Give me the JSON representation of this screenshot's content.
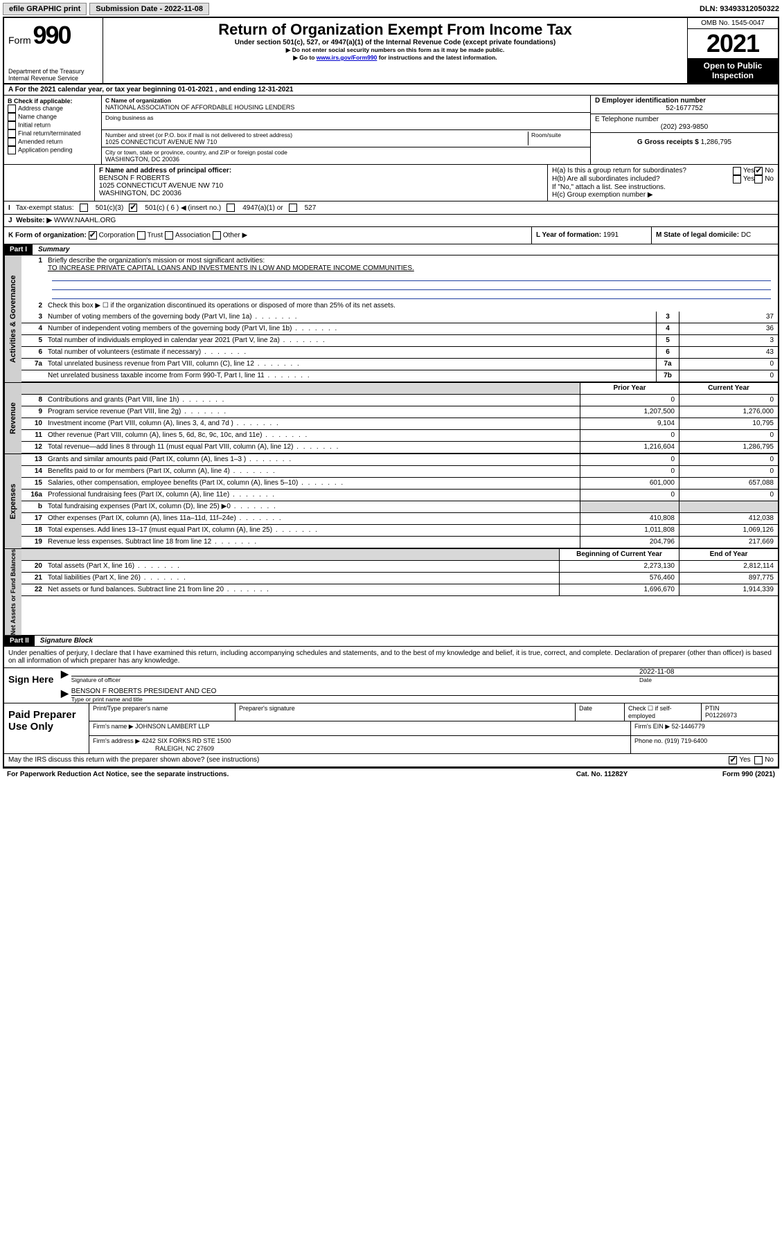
{
  "topbar": {
    "efile": "efile GRAPHIC print",
    "submission_label": "Submission Date - 2022-11-08",
    "dln": "DLN: 93493312050322"
  },
  "header": {
    "form_label": "Form",
    "form_number": "990",
    "dept": "Department of the Treasury",
    "irs": "Internal Revenue Service",
    "title": "Return of Organization Exempt From Income Tax",
    "subtitle": "Under section 501(c), 527, or 4947(a)(1) of the Internal Revenue Code (except private foundations)",
    "note1": "▶ Do not enter social security numbers on this form as it may be made public.",
    "note2_prefix": "▶ Go to ",
    "note2_link": "www.irs.gov/Form990",
    "note2_suffix": " for instructions and the latest information.",
    "omb": "OMB No. 1545-0047",
    "year": "2021",
    "open": "Open to Public Inspection"
  },
  "sectionA": {
    "text": "A For the 2021 calendar year, or tax year beginning 01-01-2021   , and ending 12-31-2021"
  },
  "sectionB": {
    "label": "B Check if applicable:",
    "items": [
      "Address change",
      "Name change",
      "Initial return",
      "Final return/terminated",
      "Amended return",
      "Application pending"
    ]
  },
  "sectionC": {
    "name_label": "C Name of organization",
    "name": "NATIONAL ASSOCIATION OF AFFORDABLE HOUSING LENDERS",
    "dba_label": "Doing business as",
    "street_label": "Number and street (or P.O. box if mail is not delivered to street address)",
    "room_label": "Room/suite",
    "street": "1025 CONNECTICUT AVENUE NW 710",
    "city_label": "City or town, state or province, country, and ZIP or foreign postal code",
    "city": "WASHINGTON, DC  20036"
  },
  "sectionD": {
    "label": "D Employer identification number",
    "value": "52-1677752"
  },
  "sectionE": {
    "label": "E Telephone number",
    "value": "(202) 293-9850"
  },
  "sectionG": {
    "label": "G Gross receipts $",
    "value": "1,286,795"
  },
  "sectionF": {
    "label": "F Name and address of principal officer:",
    "name": "BENSON F ROBERTS",
    "addr1": "1025 CONNECTICUT AVENUE NW 710",
    "addr2": "WASHINGTON, DC  20036"
  },
  "sectionH": {
    "ha": "H(a)  Is this a group return for subordinates?",
    "hb": "H(b)  Are all subordinates included?",
    "hb_note": "If \"No,\" attach a list. See instructions.",
    "hc": "H(c)  Group exemption number ▶",
    "yes": "Yes",
    "no": "No"
  },
  "lineI": {
    "label": "Tax-exempt status:",
    "opt1": "501(c)(3)",
    "opt2": "501(c) ( 6 ) ◀ (insert no.)",
    "opt3": "4947(a)(1) or",
    "opt4": "527"
  },
  "lineJ": {
    "label": "Website: ▶",
    "value": "WWW.NAAHL.ORG"
  },
  "lineK": {
    "label": "K Form of organization:",
    "opts": [
      "Corporation",
      "Trust",
      "Association",
      "Other ▶"
    ],
    "L_label": "L Year of formation: ",
    "L_value": "1991",
    "M_label": "M State of legal domicile: ",
    "M_value": "DC"
  },
  "part1": {
    "hdr": "Part I",
    "title": "Summary",
    "line1_label": "Briefly describe the organization's mission or most significant activities:",
    "line1_text": "TO INCREASE PRIVATE CAPITAL LOANS AND INVESTMENTS IN LOW AND MODERATE INCOME COMMUNITIES.",
    "line2": "Check this box ▶ ☐  if the organization discontinued its operations or disposed of more than 25% of its net assets.",
    "rows_gov": [
      {
        "n": "3",
        "d": "Number of voting members of the governing body (Part VI, line 1a)",
        "box": "3",
        "v": "37"
      },
      {
        "n": "4",
        "d": "Number of independent voting members of the governing body (Part VI, line 1b)",
        "box": "4",
        "v": "36"
      },
      {
        "n": "5",
        "d": "Total number of individuals employed in calendar year 2021 (Part V, line 2a)",
        "box": "5",
        "v": "3"
      },
      {
        "n": "6",
        "d": "Total number of volunteers (estimate if necessary)",
        "box": "6",
        "v": "43"
      },
      {
        "n": "7a",
        "d": "Total unrelated business revenue from Part VIII, column (C), line 12",
        "box": "7a",
        "v": "0"
      },
      {
        "n": "",
        "d": "Net unrelated business taxable income from Form 990-T, Part I, line 11",
        "box": "7b",
        "v": "0"
      }
    ],
    "col_hdr_prior": "Prior Year",
    "col_hdr_curr": "Current Year",
    "rows_rev": [
      {
        "n": "8",
        "d": "Contributions and grants (Part VIII, line 1h)",
        "p": "0",
        "c": "0"
      },
      {
        "n": "9",
        "d": "Program service revenue (Part VIII, line 2g)",
        "p": "1,207,500",
        "c": "1,276,000"
      },
      {
        "n": "10",
        "d": "Investment income (Part VIII, column (A), lines 3, 4, and 7d )",
        "p": "9,104",
        "c": "10,795"
      },
      {
        "n": "11",
        "d": "Other revenue (Part VIII, column (A), lines 5, 6d, 8c, 9c, 10c, and 11e)",
        "p": "0",
        "c": "0"
      },
      {
        "n": "12",
        "d": "Total revenue—add lines 8 through 11 (must equal Part VIII, column (A), line 12)",
        "p": "1,216,604",
        "c": "1,286,795"
      }
    ],
    "rows_exp": [
      {
        "n": "13",
        "d": "Grants and similar amounts paid (Part IX, column (A), lines 1–3 )",
        "p": "0",
        "c": "0"
      },
      {
        "n": "14",
        "d": "Benefits paid to or for members (Part IX, column (A), line 4)",
        "p": "0",
        "c": "0"
      },
      {
        "n": "15",
        "d": "Salaries, other compensation, employee benefits (Part IX, column (A), lines 5–10)",
        "p": "601,000",
        "c": "657,088"
      },
      {
        "n": "16a",
        "d": "Professional fundraising fees (Part IX, column (A), line 11e)",
        "p": "0",
        "c": "0"
      },
      {
        "n": "b",
        "d": "Total fundraising expenses (Part IX, column (D), line 25) ▶0",
        "p": "",
        "c": "",
        "shaded": true
      },
      {
        "n": "17",
        "d": "Other expenses (Part IX, column (A), lines 11a–11d, 11f–24e)",
        "p": "410,808",
        "c": "412,038"
      },
      {
        "n": "18",
        "d": "Total expenses. Add lines 13–17 (must equal Part IX, column (A), line 25)",
        "p": "1,011,808",
        "c": "1,069,126"
      },
      {
        "n": "19",
        "d": "Revenue less expenses. Subtract line 18 from line 12",
        "p": "204,796",
        "c": "217,669"
      }
    ],
    "col_hdr_beg": "Beginning of Current Year",
    "col_hdr_end": "End of Year",
    "rows_net": [
      {
        "n": "20",
        "d": "Total assets (Part X, line 16)",
        "p": "2,273,130",
        "c": "2,812,114"
      },
      {
        "n": "21",
        "d": "Total liabilities (Part X, line 26)",
        "p": "576,460",
        "c": "897,775"
      },
      {
        "n": "22",
        "d": "Net assets or fund balances. Subtract line 21 from line 20",
        "p": "1,696,670",
        "c": "1,914,339"
      }
    ],
    "side_gov": "Activities & Governance",
    "side_rev": "Revenue",
    "side_exp": "Expenses",
    "side_net": "Net Assets or Fund Balances"
  },
  "part2": {
    "hdr": "Part II",
    "title": "Signature Block",
    "decl": "Under penalties of perjury, I declare that I have examined this return, including accompanying schedules and statements, and to the best of my knowledge and belief, it is true, correct, and complete. Declaration of preparer (other than officer) is based on all information of which preparer has any knowledge.",
    "sign_here": "Sign Here",
    "sig_officer": "Signature of officer",
    "sig_date": "2022-11-08",
    "date_label": "Date",
    "officer_name": "BENSON F ROBERTS  PRESIDENT AND CEO",
    "name_title_label": "Type or print name and title",
    "paid": "Paid Preparer Use Only",
    "prep_name_label": "Print/Type preparer's name",
    "prep_sig_label": "Preparer's signature",
    "prep_date_label": "Date",
    "check_if": "Check ☐ if self-employed",
    "ptin_label": "PTIN",
    "ptin": "P01226973",
    "firm_name_label": "Firm's name    ▶",
    "firm_name": "JOHNSON LAMBERT LLP",
    "firm_ein_label": "Firm's EIN ▶",
    "firm_ein": "52-1446779",
    "firm_addr_label": "Firm's address ▶",
    "firm_addr1": "4242 SIX FORKS RD STE 1500",
    "firm_addr2": "RALEIGH, NC  27609",
    "phone_label": "Phone no.",
    "phone": "(919) 719-6400",
    "discuss": "May the IRS discuss this return with the preparer shown above? (see instructions)"
  },
  "footer": {
    "left": "For Paperwork Reduction Act Notice, see the separate instructions.",
    "mid": "Cat. No. 11282Y",
    "right": "Form 990 (2021)"
  }
}
